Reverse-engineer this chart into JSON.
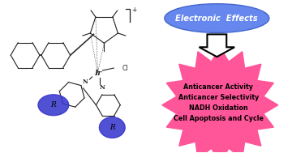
{
  "bg_color": "#ffffff",
  "ellipse_color": "#6688ee",
  "ellipse_text": "Electronic  Effects",
  "ellipse_text_color": "#ffffff",
  "star_color": "#ff5599",
  "star_lines": [
    "Anticancer Activity",
    "Anticancer Selectivity",
    "NADH Oxidation",
    "Cell Apoptosis and Cycle"
  ],
  "star_text_color": "#000000",
  "arrow_fill": "#ffffff",
  "arrow_edge": "#000000",
  "r_ellipse_color": "#3333cc",
  "r_ellipse_alpha": 0.85,
  "r_ellipse_text": "R",
  "r_ellipse_text_color": "#000000",
  "mol_line_color": "#222222",
  "label_ir": "Ir",
  "label_cl": "Cl",
  "label_n": "N",
  "plus_text": "+",
  "figsize": [
    3.6,
    1.89
  ],
  "dpi": 100
}
